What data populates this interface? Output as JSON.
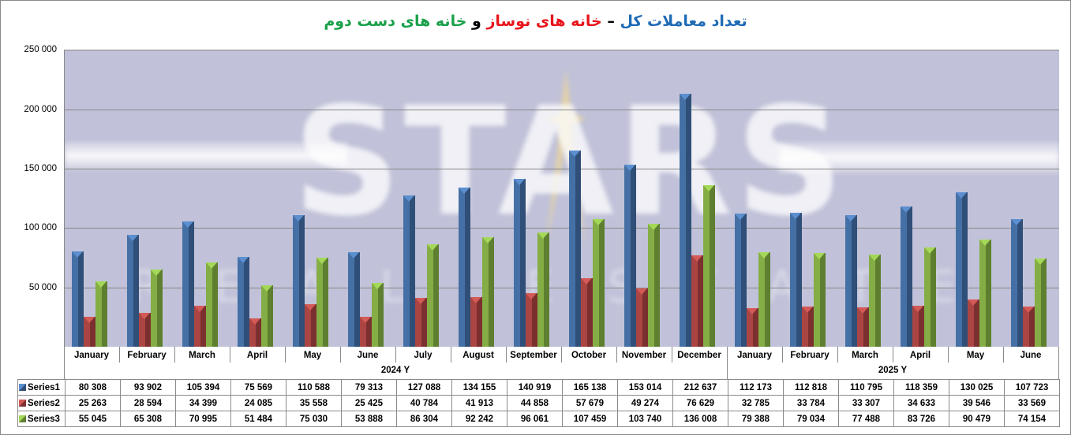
{
  "title": {
    "part1": "تعداد معاملات کل",
    "dash": " – ",
    "part2": "خانه های نوساز",
    "conj": " و ",
    "part3": "خانه های دست دوم",
    "colors": {
      "part1": "#1f6bb5",
      "part2": "#e8141b",
      "conj": "#000000",
      "part3": "#1aa04a"
    }
  },
  "watermark": {
    "text": "STARS",
    "subtext": "REAL ESTATE"
  },
  "y_axis": {
    "ticks": [
      "250 000",
      "200 000",
      "150 000",
      "100 000",
      "50 000"
    ]
  },
  "x_axis": {
    "years": [
      {
        "label": "2024 Y",
        "months": [
          "January",
          "February",
          "March",
          "April",
          "May",
          "June",
          "July",
          "August",
          "September",
          "October",
          "November",
          "December"
        ]
      },
      {
        "label": "2025 Y",
        "months": [
          "January",
          "February",
          "March",
          "April",
          "May",
          "June"
        ]
      }
    ]
  },
  "table": {
    "rows": [
      {
        "label": "Series1",
        "values": [
          "80 308",
          "93 902",
          "105 394",
          "75 569",
          "110 588",
          "79 313",
          "127 088",
          "134 155",
          "140 919",
          "165 138",
          "153 014",
          "212 637",
          "112 173",
          "112 818",
          "110 795",
          "118 359",
          "130 025",
          "107 723"
        ]
      },
      {
        "label": "Series2",
        "values": [
          "25 263",
          "28 594",
          "34 399",
          "24 085",
          "35 558",
          "25 425",
          "40 784",
          "41 913",
          "44 858",
          "57 679",
          "49 274",
          "76 629",
          "32 785",
          "33 784",
          "33 307",
          "34 633",
          "39 546",
          "33 569"
        ]
      },
      {
        "label": "Series3",
        "values": [
          "55 045",
          "65 308",
          "70 995",
          "51 484",
          "75 030",
          "53 888",
          "86 304",
          "92 242",
          "96 061",
          "107 459",
          "103 740",
          "136 008",
          "79 388",
          "79 034",
          "77 488",
          "83 726",
          "90 479",
          "74 154"
        ]
      }
    ]
  },
  "chart_data": {
    "type": "bar",
    "title": "تعداد معاملات کل – خانه های نوساز و خانه های دست دوم",
    "xlabel": "",
    "ylabel": "",
    "ylim": [
      0,
      250000
    ],
    "y_ticks": [
      50000,
      100000,
      150000,
      200000,
      250000
    ],
    "grid": true,
    "legend_position": "data-table",
    "categories": [
      "January 2024",
      "February 2024",
      "March 2024",
      "April 2024",
      "May 2024",
      "June 2024",
      "July 2024",
      "August 2024",
      "September 2024",
      "October 2024",
      "November 2024",
      "December 2024",
      "January 2025",
      "February 2025",
      "March 2025",
      "April 2025",
      "May 2025",
      "June 2025"
    ],
    "category_groups": [
      {
        "label": "2024 Y",
        "count": 12
      },
      {
        "label": "2025 Y",
        "count": 6
      }
    ],
    "series": [
      {
        "name": "Series1",
        "color": "#4570a6",
        "values": [
          80308,
          93902,
          105394,
          75569,
          110588,
          79313,
          127088,
          134155,
          140919,
          165138,
          153014,
          212637,
          112173,
          112818,
          110795,
          118359,
          130025,
          107723
        ]
      },
      {
        "name": "Series2",
        "color": "#aa4543",
        "values": [
          25263,
          28594,
          34399,
          24085,
          35558,
          25425,
          40784,
          41913,
          44858,
          57679,
          49274,
          76629,
          32785,
          33784,
          33307,
          34633,
          39546,
          33569
        ]
      },
      {
        "name": "Series3",
        "color": "#85ad45",
        "values": [
          55045,
          65308,
          70995,
          51484,
          75030,
          53888,
          86304,
          92242,
          96061,
          107459,
          103740,
          136008,
          79388,
          79034,
          77488,
          83726,
          90479,
          74154
        ]
      }
    ]
  }
}
